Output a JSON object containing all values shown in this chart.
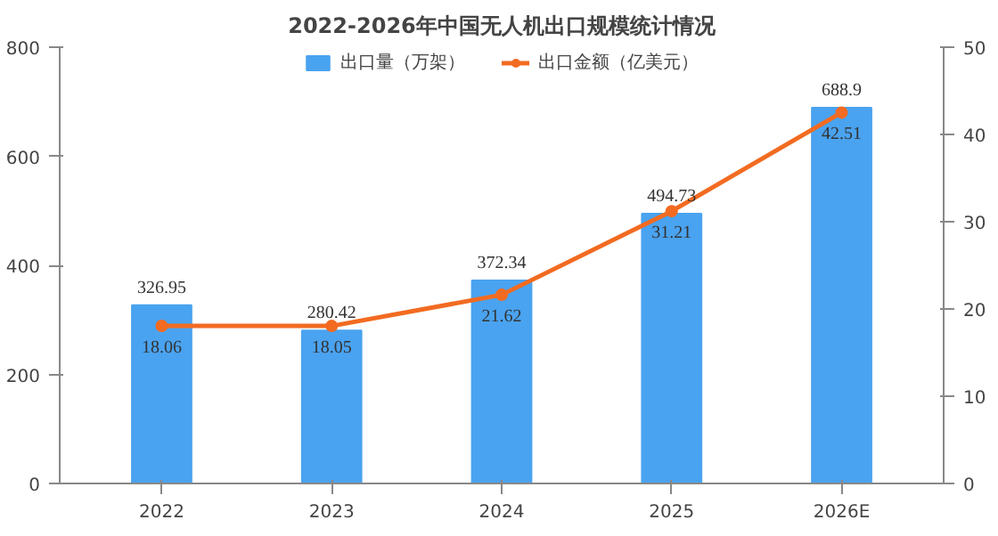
{
  "chart_data": {
    "type": "bar",
    "title": "2022-2026年中国无人机出口规模统计情况",
    "categories": [
      "2022",
      "2023",
      "2024",
      "2025",
      "2026E"
    ],
    "series": [
      {
        "name": "出口量（万架）",
        "color": "#4aa3f0",
        "values": [
          326.95,
          280.42,
          372.34,
          494.73,
          688.9
        ]
      },
      {
        "name": "出口金额（亿美元）",
        "type": "line",
        "axis": "y2",
        "color": "#f26b21",
        "values": [
          18.06,
          18.05,
          21.62,
          31.21,
          42.51
        ]
      }
    ],
    "ylim": [
      0,
      800
    ],
    "yticks": [
      0,
      200,
      400,
      600,
      800
    ],
    "y2lim": [
      0,
      50
    ],
    "y2ticks": [
      0,
      10,
      20,
      30,
      40,
      50
    ],
    "data_labels": true,
    "legend": "top",
    "grid": false,
    "marker": "circle",
    "line_style": "solid"
  }
}
